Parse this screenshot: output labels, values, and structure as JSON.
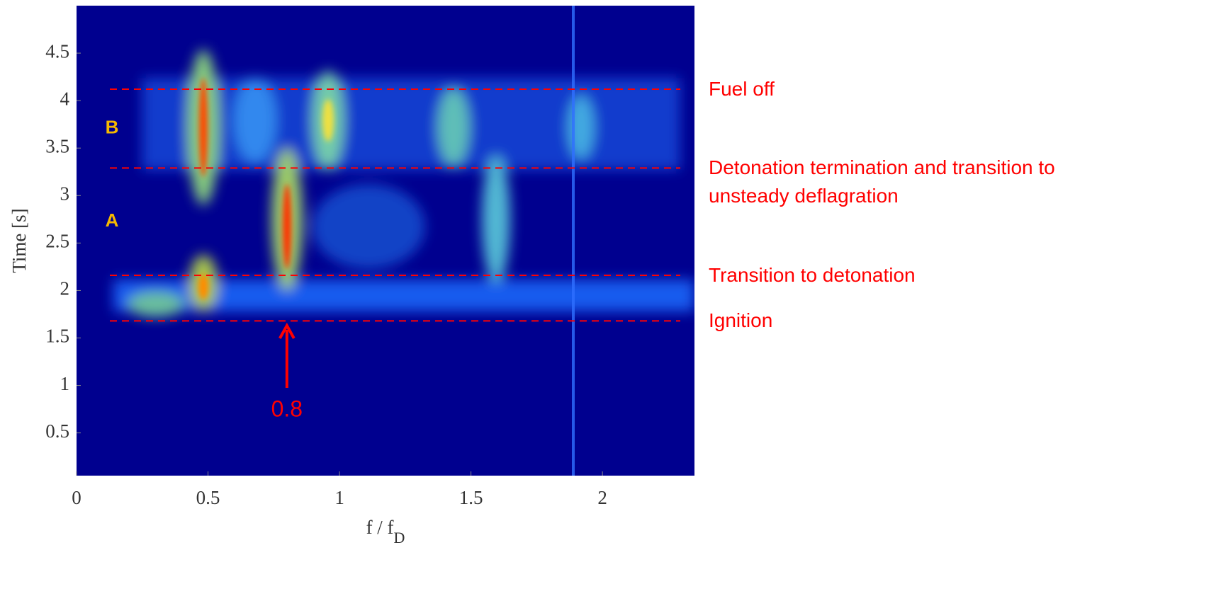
{
  "chart_data": {
    "type": "spectrogram",
    "x_label": "f / f",
    "x_label_subscript": "D",
    "y_label": "Time [s]",
    "xlim": [
      0,
      2.35
    ],
    "ylim": [
      0.05,
      5
    ],
    "xticks": [
      0,
      0.5,
      1,
      1.5,
      2
    ],
    "yticks": [
      0.5,
      1,
      1.5,
      2,
      2.5,
      3,
      3.5,
      4,
      4.5
    ],
    "events": [
      {
        "value": 4.12,
        "label": "Fuel off"
      },
      {
        "value": 3.29,
        "label": "Detonation termination and transition to unsteady deflagration"
      },
      {
        "value": 2.16,
        "label": "Transition to detonation"
      },
      {
        "value": 1.68,
        "label": "Ignition"
      }
    ],
    "regions": [
      "B",
      "A"
    ],
    "arrow": {
      "value": 0.8,
      "label": "0.8"
    },
    "annotation_color": "#ff0000",
    "region_color": "#f5b800"
  }
}
